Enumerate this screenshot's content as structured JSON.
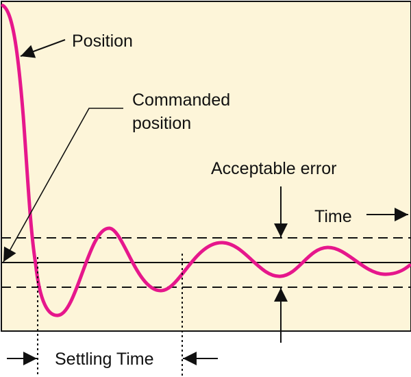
{
  "labels": {
    "position": "Position",
    "commanded_line1": "Commanded",
    "commanded_line2": "position",
    "acceptable_error": "Acceptable error",
    "time": "Time",
    "settling_time": "Settling Time"
  },
  "colors": {
    "plot_background": "#fdf5d9",
    "curve": "#e6178c",
    "ink": "#111111"
  }
}
